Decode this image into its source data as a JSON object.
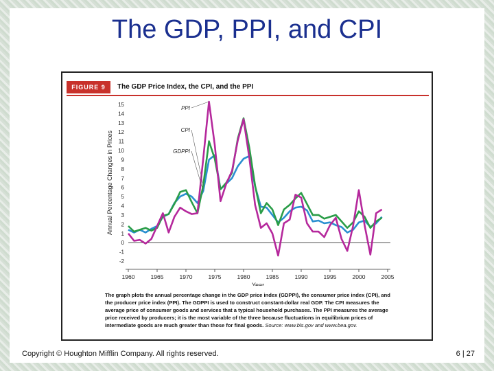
{
  "slide": {
    "title": "The GDP, PPI, and CPI",
    "copyright": "Copyright © Houghton Mifflin Company.  All rights reserved.",
    "page_number": "6 | 27"
  },
  "figure": {
    "label": "FIGURE 9",
    "title": "The GDP Price Index, the CPI, and the PPI",
    "caption": "The graph plots the annual percentage change in the GDP price index (GDPPI), the consumer price index (CPI), and the producer price index (PPI). The GDPPI is used to construct constant-dollar real GDP. The CPI measures the average price of consumer goods and services that a typical household purchases. The PPI measures the average price received by producers; it is the most variable of the three because fluctuations in equilibrium prices of intermediate goods are much greater than those for final goods.",
    "source": "Source: www.bls.gov and www.bea.gov."
  },
  "chart_data": {
    "type": "line",
    "title": "The GDP Price Index, the CPI, and the PPI",
    "xlabel": "Year",
    "ylabel": "Annual Percentage Changes in Prices",
    "xlim": [
      1960,
      2005
    ],
    "ylim": [
      -2,
      15
    ],
    "xticks": [
      "1960",
      "1965",
      "1970",
      "1975",
      "1980",
      "1985",
      "1990",
      "1995",
      "2000",
      "2005"
    ],
    "yticks": [
      "15",
      "14",
      "13",
      "12",
      "11",
      "10",
      "9",
      "8",
      "7",
      "6",
      "5",
      "4",
      "3",
      "2",
      "1",
      "0",
      "-1",
      "-2"
    ],
    "x": [
      1960,
      1961,
      1962,
      1963,
      1964,
      1965,
      1966,
      1967,
      1968,
      1969,
      1970,
      1971,
      1972,
      1973,
      1974,
      1975,
      1976,
      1977,
      1978,
      1979,
      1980,
      1981,
      1982,
      1983,
      1984,
      1985,
      1986,
      1987,
      1988,
      1989,
      1990,
      1991,
      1992,
      1993,
      1994,
      1995,
      1996,
      1997,
      1998,
      1999,
      2000,
      2001,
      2002,
      2003,
      2004
    ],
    "series": [
      {
        "name": "PPI",
        "color": "#b5289c",
        "values": [
          1.0,
          0.2,
          0.3,
          -0.1,
          0.4,
          1.8,
          3.2,
          1.1,
          2.8,
          3.8,
          3.4,
          3.1,
          3.2,
          9.1,
          15.3,
          10.6,
          4.5,
          6.4,
          7.8,
          11.1,
          13.4,
          9.2,
          4.1,
          1.6,
          2.1,
          1.0,
          -1.4,
          2.1,
          2.5,
          5.2,
          4.9,
          2.1,
          1.2,
          1.2,
          0.6,
          1.9,
          2.7,
          0.4,
          -0.9,
          1.8,
          5.7,
          1.9,
          -1.3,
          3.2,
          3.6
        ]
      },
      {
        "name": "CPI",
        "color": "#2a9d48",
        "values": [
          1.8,
          1.2,
          1.4,
          1.6,
          1.3,
          1.6,
          2.9,
          3.1,
          4.2,
          5.5,
          5.7,
          4.4,
          3.2,
          6.2,
          11.0,
          9.1,
          5.8,
          6.5,
          7.6,
          11.3,
          13.5,
          10.3,
          6.2,
          3.2,
          4.3,
          3.6,
          1.9,
          3.6,
          4.1,
          4.8,
          5.4,
          4.2,
          3.0,
          3.0,
          2.6,
          2.8,
          3.0,
          2.3,
          1.6,
          2.2,
          3.4,
          2.8,
          1.6,
          2.3,
          2.7
        ]
      },
      {
        "name": "GDPPI",
        "color": "#2a8fd0",
        "values": [
          1.4,
          1.1,
          1.4,
          1.1,
          1.5,
          1.8,
          2.8,
          3.1,
          4.3,
          5.0,
          5.3,
          5.0,
          4.3,
          5.6,
          9.0,
          9.5,
          5.8,
          6.4,
          7.0,
          8.3,
          9.1,
          9.4,
          6.1,
          3.9,
          3.8,
          3.0,
          2.2,
          2.7,
          3.4,
          3.8,
          3.9,
          3.5,
          2.3,
          2.4,
          2.1,
          2.2,
          1.9,
          1.7,
          1.1,
          1.4,
          2.2,
          2.4,
          1.7,
          2.1,
          2.8
        ]
      }
    ]
  }
}
